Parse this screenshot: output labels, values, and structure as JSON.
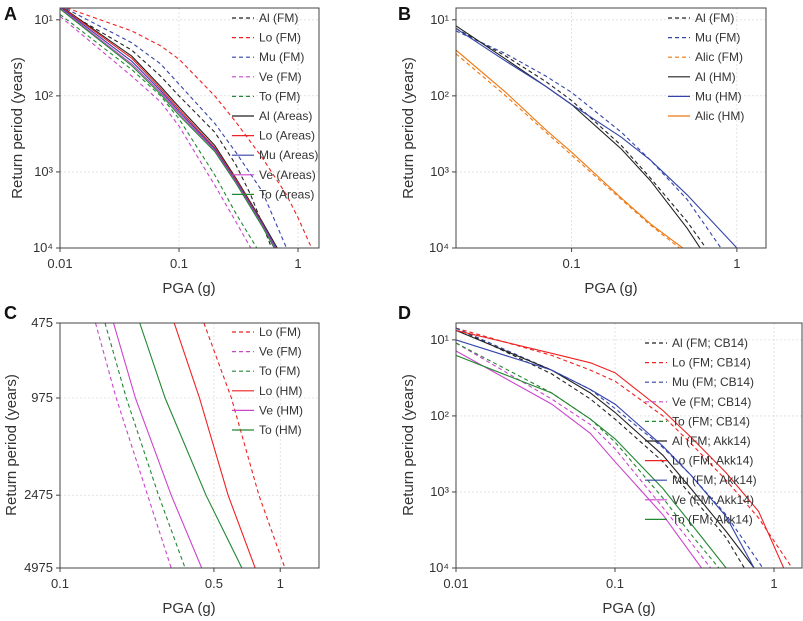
{
  "figure": {
    "colors": {
      "Al": "#222222",
      "Lo": "#ee2222",
      "Mu": "#3344aa",
      "Ve": "#cc44cc",
      "To": "#228833",
      "Alic": "#ee7711"
    }
  },
  "chart_data": [
    {
      "panel": "A",
      "type": "line",
      "xscale": "log",
      "yscale": "log",
      "yreverse": true,
      "xlabel": "PGA (g)",
      "ylabel": "Return period (years)",
      "xlim": [
        0.01,
        1.5
      ],
      "ylim": [
        7,
        10000
      ],
      "xticks": [
        0.01,
        0.1,
        1
      ],
      "xtick_labels": [
        "0.01",
        "0.1",
        "1"
      ],
      "yticks": [
        10,
        100,
        1000,
        10000
      ],
      "ytick_labels": [
        "10¹",
        "10²",
        "10³",
        "10⁴"
      ],
      "legend_position": "top-right",
      "series": [
        {
          "name": "Al (FM)",
          "group": "Al",
          "style": "dashed",
          "x": [
            0.01,
            0.04,
            0.07,
            0.1,
            0.2,
            0.3,
            0.4,
            0.6
          ],
          "y": [
            7,
            25,
            55,
            100,
            300,
            800,
            2000,
            10000
          ]
        },
        {
          "name": "Lo (FM)",
          "group": "Lo",
          "style": "dashed",
          "x": [
            0.01,
            0.04,
            0.07,
            0.1,
            0.2,
            0.3,
            0.5,
            0.8,
            1.0,
            1.3
          ],
          "y": [
            6.5,
            14,
            22,
            33,
            100,
            220,
            650,
            2000,
            4000,
            10000
          ]
        },
        {
          "name": "Mu (FM)",
          "group": "Mu",
          "style": "dashed",
          "x": [
            0.01,
            0.04,
            0.07,
            0.1,
            0.2,
            0.3,
            0.5,
            0.8
          ],
          "y": [
            6.5,
            20,
            38,
            70,
            230,
            550,
            1800,
            10000
          ]
        },
        {
          "name": "Ve (FM)",
          "group": "Ve",
          "style": "dashed",
          "x": [
            0.01,
            0.04,
            0.07,
            0.1,
            0.2,
            0.3,
            0.4
          ],
          "y": [
            9,
            55,
            120,
            250,
            1500,
            4500,
            10000
          ]
        },
        {
          "name": "To (FM)",
          "group": "To",
          "style": "dashed",
          "x": [
            0.01,
            0.04,
            0.07,
            0.1,
            0.2,
            0.3,
            0.45
          ],
          "y": [
            8.5,
            45,
            100,
            200,
            1100,
            3500,
            10000
          ]
        },
        {
          "name": "Al (Areas)",
          "group": "Al",
          "style": "solid",
          "x": [
            0.01,
            0.04,
            0.07,
            0.1,
            0.2,
            0.3,
            0.5,
            0.67
          ],
          "y": [
            6.5,
            30,
            75,
            140,
            450,
            1200,
            4500,
            10000
          ]
        },
        {
          "name": "Lo (Areas)",
          "group": "Lo",
          "style": "solid",
          "x": [
            0.01,
            0.04,
            0.07,
            0.1,
            0.2,
            0.3,
            0.5,
            0.65
          ],
          "y": [
            6.6,
            32,
            80,
            150,
            480,
            1250,
            4700,
            10000
          ]
        },
        {
          "name": "Mu (Areas)",
          "group": "Mu",
          "style": "solid",
          "x": [
            0.01,
            0.04,
            0.07,
            0.1,
            0.2,
            0.3,
            0.5,
            0.65
          ],
          "y": [
            6.8,
            35,
            85,
            160,
            500,
            1300,
            4800,
            10000
          ]
        },
        {
          "name": "Ve (Areas)",
          "group": "Ve",
          "style": "solid",
          "x": [
            0.01,
            0.04,
            0.07,
            0.1,
            0.2,
            0.3,
            0.5,
            0.64
          ],
          "y": [
            7,
            38,
            90,
            170,
            520,
            1350,
            5000,
            10000
          ]
        },
        {
          "name": "To (Areas)",
          "group": "To",
          "style": "solid",
          "x": [
            0.01,
            0.04,
            0.07,
            0.1,
            0.2,
            0.3,
            0.5,
            0.63
          ],
          "y": [
            7.2,
            40,
            95,
            180,
            540,
            1400,
            5200,
            10000
          ]
        }
      ]
    },
    {
      "panel": "B",
      "type": "line",
      "xscale": "log",
      "yscale": "log",
      "yreverse": true,
      "xlabel": "PGA (g)",
      "ylabel": "Return period (years)",
      "xlim": [
        0.02,
        1.5
      ],
      "ylim": [
        7,
        10000
      ],
      "xticks": [
        0.1,
        1
      ],
      "xtick_labels": [
        "0.1",
        "1"
      ],
      "yticks": [
        10,
        100,
        1000,
        10000
      ],
      "ytick_labels": [
        "10¹",
        "10²",
        "10³",
        "10⁴"
      ],
      "legend_position": "top-right",
      "series": [
        {
          "name": "Al (FM)",
          "group": "Al",
          "style": "dashed",
          "x": [
            0.02,
            0.04,
            0.07,
            0.1,
            0.2,
            0.3,
            0.5,
            0.65
          ],
          "y": [
            13,
            30,
            65,
            115,
            450,
            1200,
            4500,
            10000
          ]
        },
        {
          "name": "Mu (FM)",
          "group": "Mu",
          "style": "dashed",
          "x": [
            0.02,
            0.04,
            0.07,
            0.1,
            0.2,
            0.3,
            0.5,
            0.8
          ],
          "y": [
            14,
            28,
            55,
            90,
            300,
            700,
            2300,
            10000
          ]
        },
        {
          "name": "Alic (FM)",
          "group": "Alic",
          "style": "dashed",
          "x": [
            0.02,
            0.04,
            0.07,
            0.1,
            0.2,
            0.3,
            0.45
          ],
          "y": [
            28,
            100,
            300,
            600,
            2300,
            5000,
            10000
          ]
        },
        {
          "name": "Al (HM)",
          "group": "Al",
          "style": "solid",
          "x": [
            0.02,
            0.04,
            0.07,
            0.1,
            0.2,
            0.3,
            0.5,
            0.6
          ],
          "y": [
            12,
            33,
            75,
            130,
            500,
            1300,
            5500,
            10000
          ]
        },
        {
          "name": "Mu (HM)",
          "group": "Mu",
          "style": "solid",
          "x": [
            0.02,
            0.04,
            0.07,
            0.1,
            0.2,
            0.3,
            0.5,
            1.0
          ],
          "y": [
            13,
            35,
            75,
            130,
            350,
            700,
            2000,
            10000
          ]
        },
        {
          "name": "Alic (HM)",
          "group": "Alic",
          "style": "solid",
          "x": [
            0.02,
            0.04,
            0.07,
            0.1,
            0.2,
            0.3,
            0.47
          ],
          "y": [
            25,
            90,
            280,
            550,
            2200,
            4800,
            10000
          ]
        }
      ]
    },
    {
      "panel": "C",
      "type": "line",
      "xscale": "log",
      "yscale": "log",
      "yreverse": true,
      "xlabel": "PGA (g)",
      "ylabel": "Return period (years)",
      "xlim": [
        0.1,
        1.5
      ],
      "ylim": [
        475,
        4975
      ],
      "xticks": [
        0.1,
        0.5,
        1
      ],
      "xtick_labels": [
        "0.1",
        "0.5",
        "1"
      ],
      "yticks": [
        475,
        975,
        2475,
        4975
      ],
      "ytick_labels": [
        "475",
        "975",
        "2475",
        "4975"
      ],
      "legend_position": "top-right",
      "series": [
        {
          "name": "Lo (FM)",
          "group": "Lo",
          "style": "dashed",
          "x": [
            0.45,
            0.6,
            0.8,
            1.05
          ],
          "y": [
            475,
            975,
            2475,
            4975
          ]
        },
        {
          "name": "Ve (FM)",
          "group": "Ve",
          "style": "dashed",
          "x": [
            0.145,
            0.18,
            0.25,
            0.32
          ],
          "y": [
            475,
            975,
            2475,
            4975
          ]
        },
        {
          "name": "To (FM)",
          "group": "To",
          "style": "dashed",
          "x": [
            0.16,
            0.2,
            0.28,
            0.37
          ],
          "y": [
            475,
            975,
            2475,
            4975
          ]
        },
        {
          "name": "Lo (HM)",
          "group": "Lo",
          "style": "solid",
          "x": [
            0.33,
            0.43,
            0.58,
            0.77
          ],
          "y": [
            475,
            975,
            2475,
            4975
          ]
        },
        {
          "name": "Ve (HM)",
          "group": "Ve",
          "style": "solid",
          "x": [
            0.175,
            0.22,
            0.32,
            0.44
          ],
          "y": [
            475,
            975,
            2475,
            4975
          ]
        },
        {
          "name": "To (HM)",
          "group": "To",
          "style": "solid",
          "x": [
            0.23,
            0.3,
            0.46,
            0.67
          ],
          "y": [
            475,
            975,
            2475,
            4975
          ]
        }
      ]
    },
    {
      "panel": "D",
      "type": "line",
      "xscale": "log",
      "yscale": "log",
      "yreverse": true,
      "xlabel": "PGA (g)",
      "ylabel": "Return period (years)",
      "xlim": [
        0.01,
        1.5
      ],
      "ylim": [
        6,
        10000
      ],
      "xticks": [
        0.01,
        0.1,
        1
      ],
      "xtick_labels": [
        "0.01",
        "0.1",
        "1"
      ],
      "yticks": [
        10,
        100,
        1000,
        10000
      ],
      "ytick_labels": [
        "10¹",
        "10²",
        "10³",
        "10⁴"
      ],
      "legend_position": "top-right",
      "series": [
        {
          "name": "Al (FM; CB14)",
          "group": "Al",
          "style": "dashed",
          "x": [
            0.01,
            0.04,
            0.07,
            0.1,
            0.2,
            0.3,
            0.5,
            0.65
          ],
          "y": [
            7,
            28,
            60,
            110,
            400,
            1100,
            4000,
            10000
          ]
        },
        {
          "name": "Lo (FM; CB14)",
          "group": "Lo",
          "style": "dashed",
          "x": [
            0.01,
            0.04,
            0.07,
            0.1,
            0.2,
            0.3,
            0.5,
            0.8,
            1.3
          ],
          "y": [
            7,
            16,
            25,
            35,
            100,
            230,
            700,
            2200,
            10000
          ]
        },
        {
          "name": "Mu (FM; CB14)",
          "group": "Mu",
          "style": "dashed",
          "x": [
            0.01,
            0.04,
            0.07,
            0.1,
            0.2,
            0.3,
            0.5,
            0.85
          ],
          "y": [
            7,
            25,
            45,
            80,
            260,
            600,
            2000,
            10000
          ]
        },
        {
          "name": "Ve (FM; CB14)",
          "group": "Ve",
          "style": "dashed",
          "x": [
            0.01,
            0.04,
            0.07,
            0.1,
            0.2,
            0.3,
            0.4
          ],
          "y": [
            11,
            60,
            130,
            270,
            1600,
            4600,
            10000
          ]
        },
        {
          "name": "To (FM; CB14)",
          "group": "To",
          "style": "dashed",
          "x": [
            0.01,
            0.04,
            0.07,
            0.1,
            0.2,
            0.3,
            0.45
          ],
          "y": [
            11,
            50,
            110,
            220,
            1200,
            3600,
            10000
          ]
        },
        {
          "name": "Al (FM; Akk14)",
          "group": "Al",
          "style": "solid",
          "x": [
            0.01,
            0.04,
            0.07,
            0.1,
            0.2,
            0.3,
            0.5,
            0.75
          ],
          "y": [
            7.5,
            25,
            50,
            90,
            330,
            900,
            3300,
            10000
          ]
        },
        {
          "name": "Lo (FM; Akk14)",
          "group": "Lo",
          "style": "solid",
          "x": [
            0.01,
            0.04,
            0.07,
            0.1,
            0.2,
            0.3,
            0.5,
            0.8,
            1.15
          ],
          "y": [
            7.5,
            15,
            20,
            27,
            85,
            190,
            560,
            1800,
            10000
          ]
        },
        {
          "name": "Mu (FM; Akk14)",
          "group": "Mu",
          "style": "solid",
          "x": [
            0.01,
            0.04,
            0.07,
            0.1,
            0.2,
            0.3,
            0.5,
            0.75
          ],
          "y": [
            10,
            25,
            45,
            70,
            250,
            600,
            2100,
            10000
          ]
        },
        {
          "name": "Ve (FM; Akk14)",
          "group": "Ve",
          "style": "solid",
          "x": [
            0.01,
            0.04,
            0.07,
            0.1,
            0.2,
            0.35
          ],
          "y": [
            14,
            70,
            170,
            400,
            2000,
            10000
          ]
        },
        {
          "name": "To (FM; Akk14)",
          "group": "To",
          "style": "solid",
          "x": [
            0.01,
            0.04,
            0.07,
            0.1,
            0.2,
            0.3,
            0.5
          ],
          "y": [
            16,
            50,
            110,
            200,
            900,
            2600,
            10000
          ]
        }
      ]
    }
  ]
}
